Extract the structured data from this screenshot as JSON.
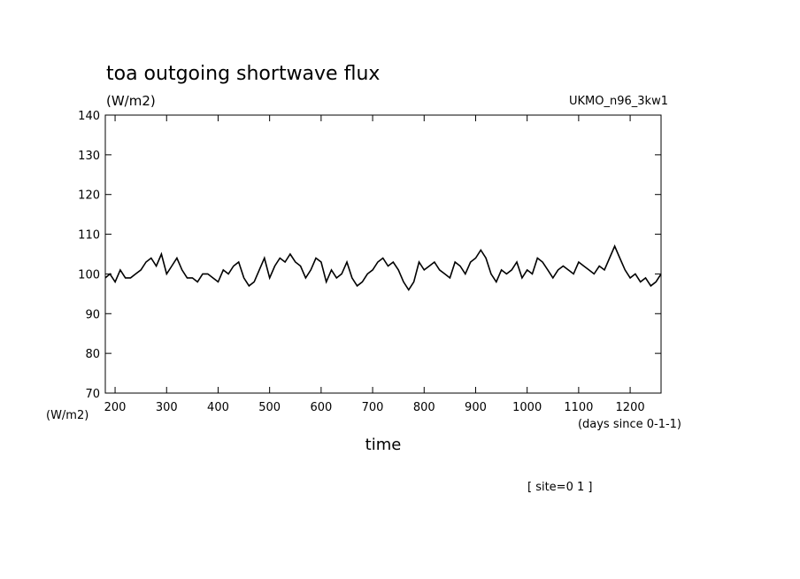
{
  "chart_data": {
    "type": "line",
    "title": "toa outgoing shortwave flux",
    "units_label": "(W/m2)",
    "model_label": "UKMO_n96_3kw1",
    "ylabel_bottom": "(W/m2)",
    "xlabel": "time",
    "xunits": "(days since 0-1-1)",
    "site_label": "[ site=0 1 ]",
    "xlim": [
      181,
      1260
    ],
    "ylim": [
      70,
      140
    ],
    "xticks": [
      200,
      300,
      400,
      500,
      600,
      700,
      800,
      900,
      1000,
      1100,
      1200
    ],
    "yticks": [
      70,
      80,
      90,
      100,
      110,
      120,
      130,
      140
    ],
    "grid": false,
    "series": [
      {
        "x": [
          181,
          190,
          200,
          210,
          220,
          230,
          240,
          250,
          260,
          270,
          280,
          290,
          300,
          310,
          320,
          330,
          340,
          350,
          360,
          370,
          380,
          390,
          400,
          410,
          420,
          430,
          440,
          450,
          460,
          470,
          480,
          490,
          500,
          510,
          520,
          530,
          540,
          550,
          560,
          570,
          580,
          590,
          600,
          610,
          620,
          630,
          640,
          650,
          660,
          670,
          680,
          690,
          700,
          710,
          720,
          730,
          740,
          750,
          760,
          770,
          780,
          790,
          800,
          810,
          820,
          830,
          840,
          850,
          860,
          870,
          880,
          890,
          900,
          910,
          920,
          930,
          940,
          950,
          960,
          970,
          980,
          990,
          1000,
          1010,
          1020,
          1030,
          1040,
          1050,
          1060,
          1070,
          1080,
          1090,
          1100,
          1110,
          1120,
          1130,
          1140,
          1150,
          1160,
          1170,
          1180,
          1190,
          1200,
          1210,
          1220,
          1230,
          1240,
          1250,
          1260
        ],
        "values": [
          99,
          100,
          98,
          101,
          99,
          99,
          100,
          101,
          103,
          104,
          102,
          105,
          100,
          102,
          104,
          101,
          99,
          99,
          98,
          100,
          100,
          99,
          98,
          101,
          100,
          102,
          103,
          99,
          97,
          98,
          101,
          104,
          99,
          102,
          104,
          103,
          105,
          103,
          102,
          99,
          101,
          104,
          103,
          98,
          101,
          99,
          100,
          103,
          99,
          97,
          98,
          100,
          101,
          103,
          104,
          102,
          103,
          101,
          98,
          96,
          98,
          103,
          101,
          102,
          103,
          101,
          100,
          99,
          103,
          102,
          100,
          103,
          104,
          106,
          104,
          100,
          98,
          101,
          100,
          101,
          103,
          99,
          101,
          100,
          104,
          103,
          101,
          99,
          101,
          102,
          101,
          100,
          103,
          102,
          101,
          100,
          102,
          101,
          104,
          107,
          104,
          101,
          99,
          100,
          98,
          99,
          97,
          98,
          100
        ]
      }
    ]
  }
}
